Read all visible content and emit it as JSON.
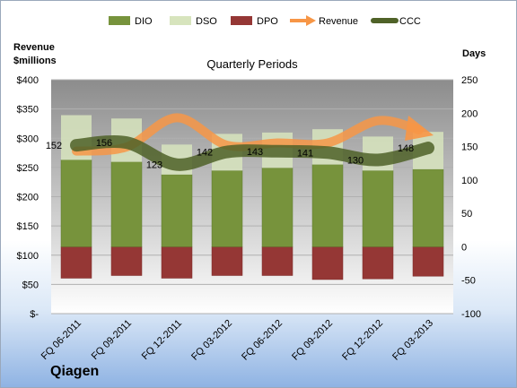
{
  "company": "Qiagen",
  "chart_data": {
    "type": "bar",
    "subtitle": "Quarterly Periods",
    "left_axis_label": [
      "Revenue",
      "$millions"
    ],
    "right_axis_label": "Days",
    "left_ylim": [
      0,
      400
    ],
    "right_ylim": [
      -100,
      250
    ],
    "left_ticks": [
      "$400",
      "$350",
      "$300",
      "$250",
      "$200",
      "$150",
      "$100",
      "$50",
      "$-"
    ],
    "right_ticks": [
      "250",
      "200",
      "150",
      "100",
      "50",
      "0",
      "-50",
      "-100"
    ],
    "legend_position": "top",
    "categories": [
      "FQ 06-2011",
      "FQ 09-2011",
      "FQ 12-2011",
      "FQ 03-2012",
      "FQ 06-2012",
      "FQ 09-2012",
      "FQ 12-2012",
      "FQ 03-2013"
    ],
    "series": [
      {
        "name": "DIO",
        "axis": "right",
        "kind": "bar",
        "color": "#77933c",
        "values": [
          130,
          127,
          108,
          114,
          118,
          123,
          114,
          116
        ]
      },
      {
        "name": "DSO",
        "axis": "right",
        "kind": "bar",
        "color": "#d7e4bd",
        "values": [
          67,
          65,
          45,
          55,
          53,
          53,
          51,
          56
        ]
      },
      {
        "name": "DPO",
        "axis": "right",
        "kind": "bar",
        "color": "#953735",
        "values": [
          -47,
          -43,
          -47,
          -43,
          -43,
          -49,
          -48,
          -44
        ]
      },
      {
        "name": "Revenue",
        "axis": "left",
        "kind": "line",
        "color": "#f79646",
        "values": [
          278,
          285,
          335,
          288,
          292,
          292,
          330,
          308
        ]
      },
      {
        "name": "CCC",
        "axis": "right",
        "kind": "line",
        "color": "#4f6228",
        "values": [
          152,
          156,
          123,
          142,
          143,
          141,
          130,
          148
        ]
      }
    ],
    "ccc_labels": [
      "152",
      "156",
      "123",
      "142",
      "143",
      "141",
      "130",
      "148"
    ]
  }
}
